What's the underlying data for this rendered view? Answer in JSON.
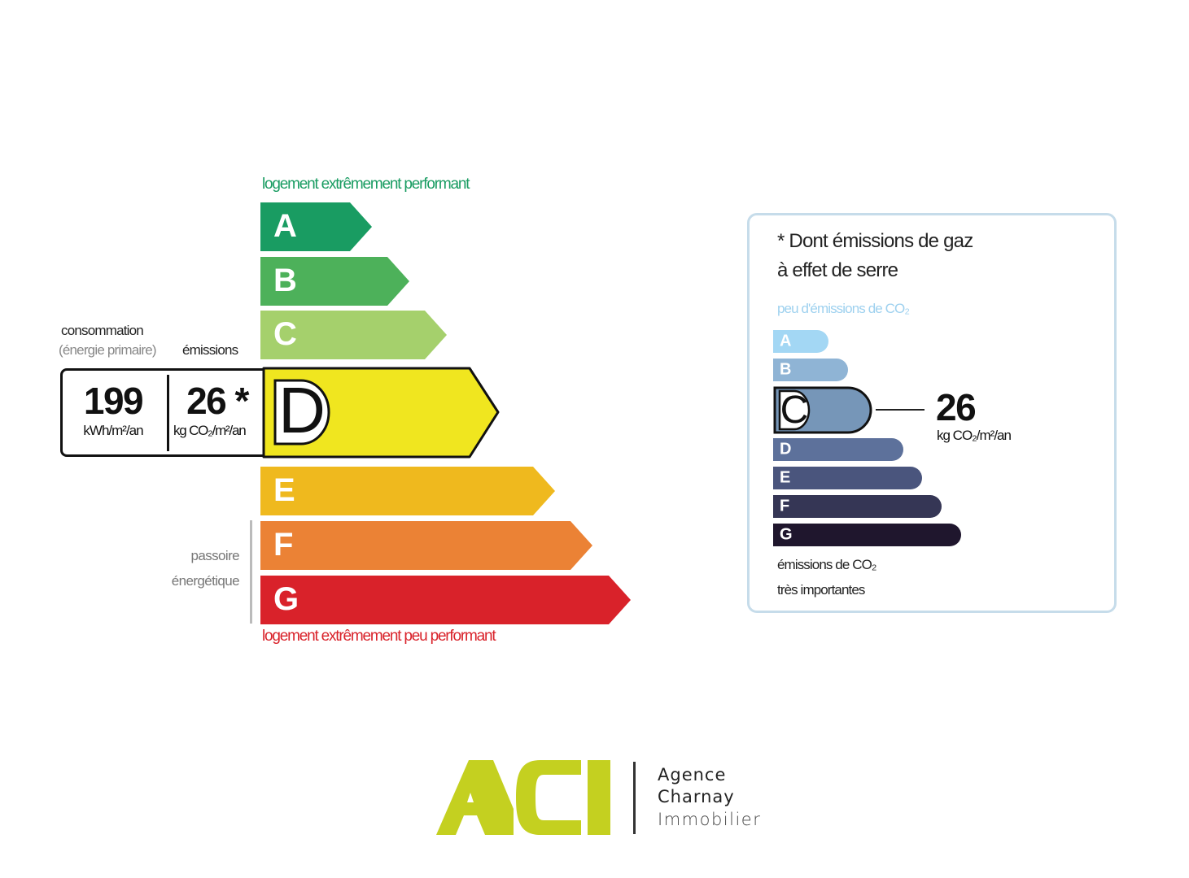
{
  "dpe": {
    "top_caption": "logement extrêmement performant",
    "bottom_caption": "logement extrêmement peu performant",
    "label_consommation": "consommation",
    "label_energie_primaire": "(énergie primaire)",
    "label_emissions": "émissions",
    "consumption_value": "199",
    "consumption_unit": "kWh/m²/an",
    "emissions_value": "26 *",
    "emissions_unit": "kg CO₂/m²/an",
    "current_class": "D",
    "passoire_line1": "passoire",
    "passoire_line2": "énergétique",
    "classes": [
      {
        "letter": "A",
        "color": "#199c62"
      },
      {
        "letter": "B",
        "color": "#4db15a"
      },
      {
        "letter": "C",
        "color": "#a5d06c"
      },
      {
        "letter": "D",
        "color": "#f0e61f"
      },
      {
        "letter": "E",
        "color": "#efb91e"
      },
      {
        "letter": "F",
        "color": "#eb8235"
      },
      {
        "letter": "G",
        "color": "#d9222a"
      }
    ]
  },
  "ges": {
    "title_line1": "* Dont émissions de gaz",
    "title_line2": "à effet de serre",
    "top_caption": "peu d'émissions de CO₂",
    "bottom_caption_line1": "émissions de CO₂",
    "bottom_caption_line2": "très importantes",
    "value": "26",
    "unit": "kg CO₂/m²/an",
    "current_class": "C",
    "classes": [
      {
        "letter": "A",
        "color": "#a3d7f4"
      },
      {
        "letter": "B",
        "color": "#8fb4d5"
      },
      {
        "letter": "C",
        "color": "#7696b8"
      },
      {
        "letter": "D",
        "color": "#5d719b"
      },
      {
        "letter": "E",
        "color": "#4a557d"
      },
      {
        "letter": "F",
        "color": "#353655"
      },
      {
        "letter": "G",
        "color": "#1f162d"
      }
    ]
  },
  "logo": {
    "mark": "ACI",
    "line1": "Agence",
    "line2": "Charnay",
    "line3": "Immobilier",
    "brand_color": "#c4d020"
  }
}
